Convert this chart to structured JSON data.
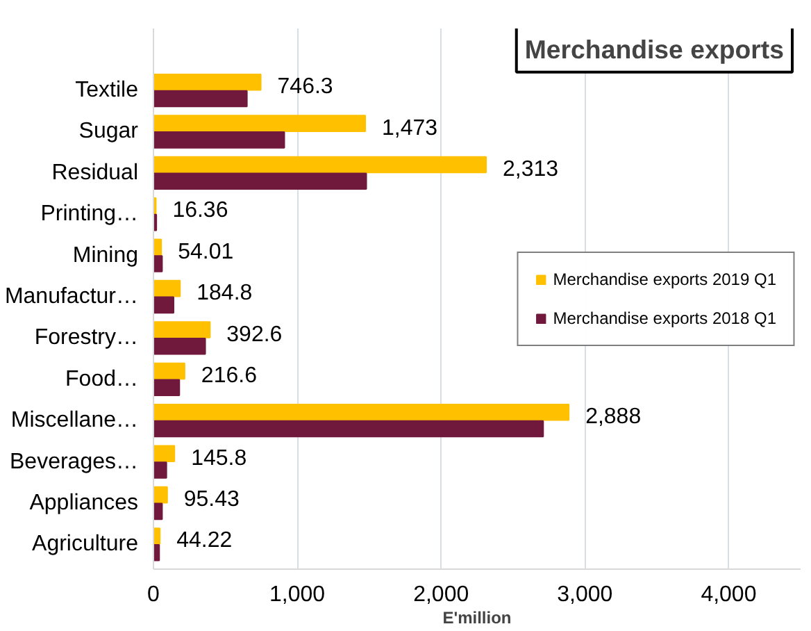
{
  "chart_data": {
    "type": "bar",
    "orientation": "horizontal",
    "title": "Merchandise exports",
    "xlabel": "E'million",
    "categories": [
      "Textile",
      "Sugar",
      "Residual",
      "Printing…",
      "Mining",
      "Manufactur…",
      "Forestry…",
      "Food…",
      "Miscellane…",
      "Beverages…",
      "Appliances",
      "Agriculture"
    ],
    "series": [
      {
        "name": "Merchandise exports 2019 Q1",
        "color": "#ffc000",
        "values": [
          746.3,
          1473,
          2313,
          16.36,
          54.01,
          184.8,
          392.6,
          216.6,
          2888,
          145.8,
          95.43,
          44.22
        ],
        "value_labels": [
          "746.3",
          "1,473",
          "2,313",
          "16.36",
          "54.01",
          "184.8",
          "392.6",
          "216.6",
          "2,888",
          "145.8",
          "95.43",
          "44.22"
        ]
      },
      {
        "name": "Merchandise exports 2018 Q1",
        "color": "#70193d",
        "values": [
          650,
          910,
          1480,
          20,
          60,
          140,
          360,
          180,
          2710,
          90,
          60,
          40
        ]
      }
    ],
    "xlim": [
      0,
      4500
    ],
    "xticks": [
      {
        "value": 0,
        "label": "0"
      },
      {
        "value": 1000,
        "label": "1,000"
      },
      {
        "value": 2000,
        "label": "2,000"
      },
      {
        "value": 3000,
        "label": "3,000"
      },
      {
        "value": 4000,
        "label": "4,000"
      }
    ],
    "grid": "x",
    "legend": "right"
  }
}
